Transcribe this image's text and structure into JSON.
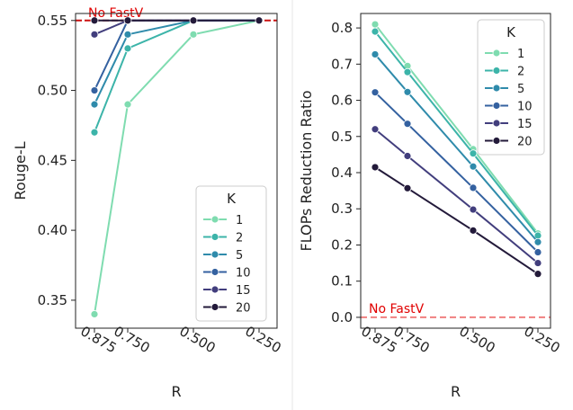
{
  "chart_data": [
    {
      "type": "line",
      "x": [
        "0.875",
        "0.750",
        "0.500",
        "0.250"
      ],
      "xlabel": "R",
      "ylabel": "Rouge-L",
      "ylim": [
        0.33,
        0.555
      ],
      "yticks": [
        "0.35",
        "0.40",
        "0.45",
        "0.50",
        "0.55"
      ],
      "yticks_values": [
        0.35,
        0.4,
        0.45,
        0.5,
        0.55
      ],
      "baseline": {
        "label": "No FastV",
        "value": 0.55
      },
      "legend": {
        "title": "K",
        "placement": "lower-right"
      },
      "series": [
        {
          "name": "1",
          "values": [
            0.34,
            0.49,
            0.54,
            0.55
          ],
          "color": "#7fdcb0"
        },
        {
          "name": "2",
          "values": [
            0.47,
            0.53,
            0.55,
            0.55
          ],
          "color": "#3cb4a9"
        },
        {
          "name": "5",
          "values": [
            0.49,
            0.54,
            0.55,
            0.55
          ],
          "color": "#2f8bab"
        },
        {
          "name": "10",
          "values": [
            0.5,
            0.55,
            0.55,
            0.55
          ],
          "color": "#3461a0"
        },
        {
          "name": "15",
          "values": [
            0.54,
            0.55,
            0.55,
            0.55
          ],
          "color": "#423e7d"
        },
        {
          "name": "20",
          "values": [
            0.55,
            0.55,
            0.55,
            0.55
          ],
          "color": "#231a3a"
        }
      ]
    },
    {
      "type": "line",
      "x": [
        "0.875",
        "0.750",
        "0.500",
        "0.250"
      ],
      "xlabel": "R",
      "ylabel": "FLOPs Reduction Ratio",
      "ylim": [
        -0.03,
        0.84
      ],
      "yticks": [
        "0.0",
        "0.1",
        "0.2",
        "0.3",
        "0.4",
        "0.5",
        "0.6",
        "0.7",
        "0.8"
      ],
      "yticks_values": [
        0,
        0.1,
        0.2,
        0.3,
        0.4,
        0.5,
        0.6,
        0.7,
        0.8
      ],
      "baseline": {
        "label": "No FastV",
        "value": 0.0
      },
      "legend": {
        "title": "K",
        "placement": "upper-right"
      },
      "series": [
        {
          "name": "1",
          "values": [
            0.81,
            0.695,
            0.465,
            0.232
          ],
          "color": "#7fdcb0"
        },
        {
          "name": "2",
          "values": [
            0.79,
            0.678,
            0.453,
            0.226
          ],
          "color": "#3cb4a9"
        },
        {
          "name": "5",
          "values": [
            0.727,
            0.623,
            0.417,
            0.208
          ],
          "color": "#2f8bab"
        },
        {
          "name": "10",
          "values": [
            0.622,
            0.535,
            0.358,
            0.18
          ],
          "color": "#3461a0"
        },
        {
          "name": "15",
          "values": [
            0.52,
            0.446,
            0.298,
            0.15
          ],
          "color": "#423e7d"
        },
        {
          "name": "20",
          "values": [
            0.415,
            0.357,
            0.24,
            0.12
          ],
          "color": "#231a3a"
        }
      ]
    }
  ],
  "colors": {
    "baseline_left": "#cc1111",
    "baseline_right": "#f08080",
    "annotation": "#e00000"
  }
}
